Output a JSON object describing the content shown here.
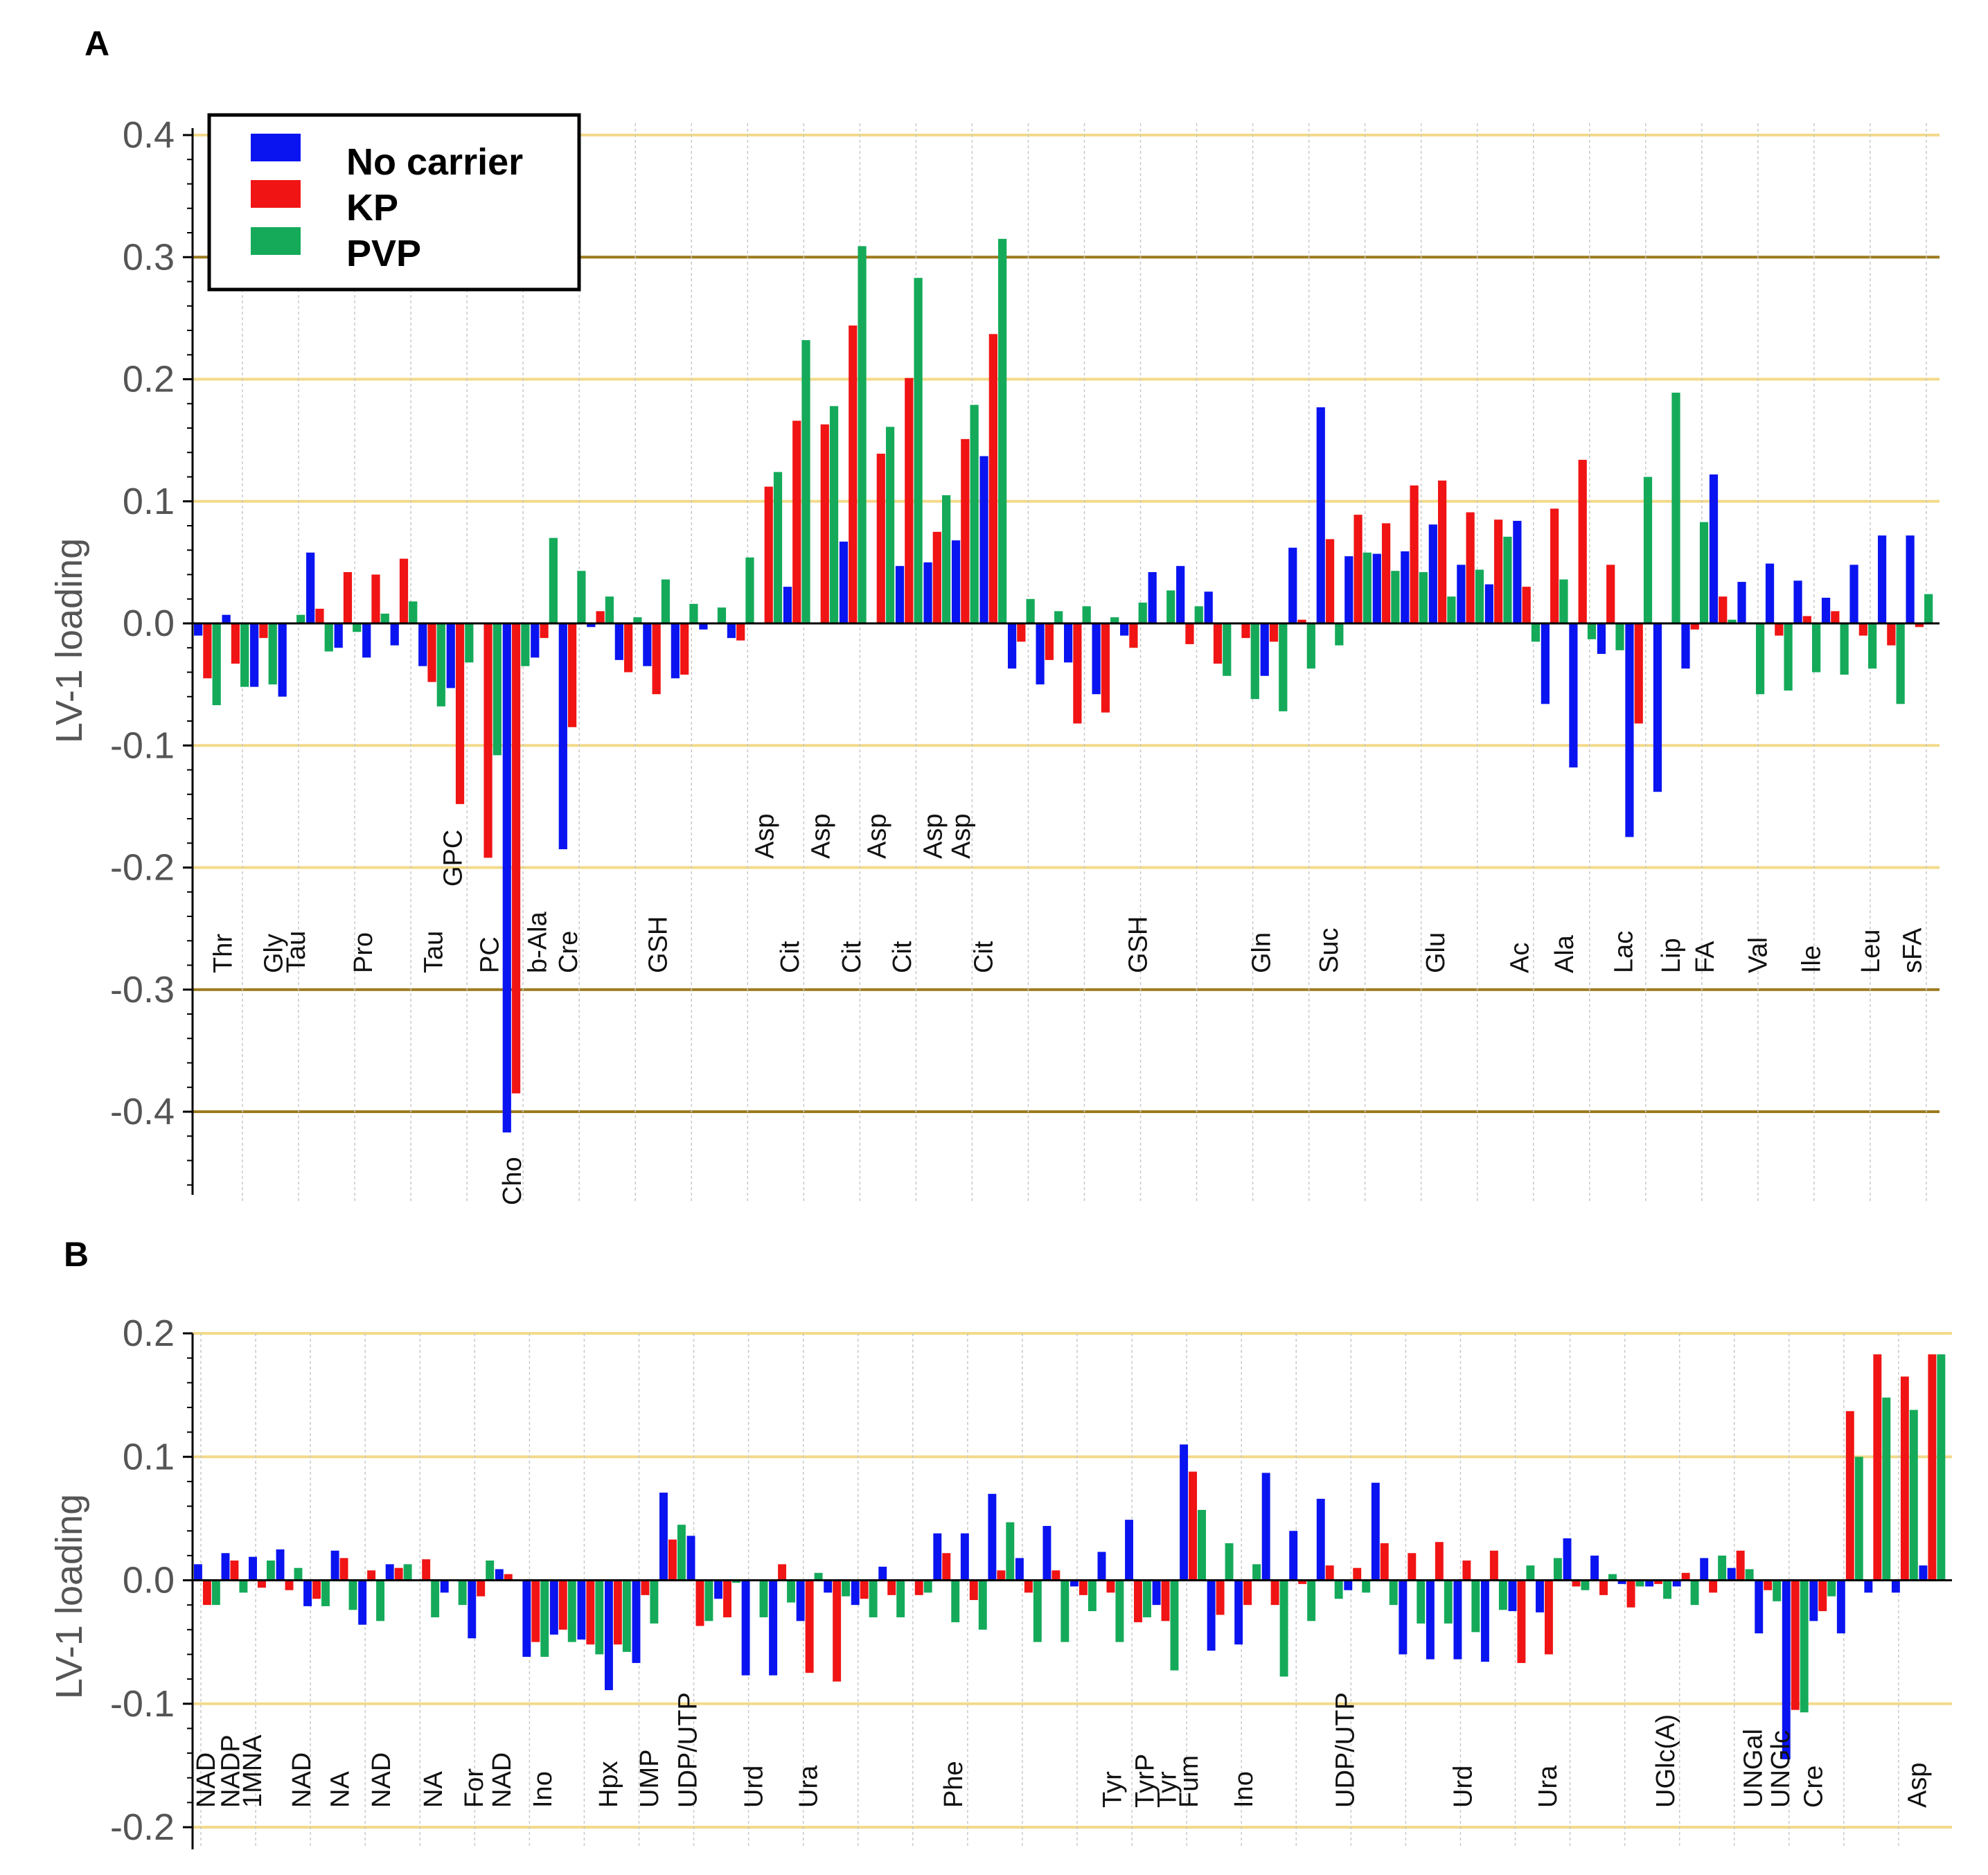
{
  "colors": {
    "No carrier": "#0a14f0",
    "KP": "#f01414",
    "PVP": "#14aa5a",
    "grid_light": "#f3da8a",
    "grid_dark": "#9c7a1e"
  },
  "legend": [
    {
      "name": "No carrier",
      "color": "#0a14f0"
    },
    {
      "name": "KP",
      "color": "#f01414"
    },
    {
      "name": "PVP",
      "color": "#14aa5a"
    }
  ],
  "chart_data": [
    {
      "panel": "A",
      "type": "bar",
      "ylabel": "LV-1 loading",
      "ylim": [
        -0.47,
        0.4
      ],
      "yticks": [
        "0.4",
        "0.3",
        "0.2",
        "0.1",
        "0.0",
        "-0.1",
        "-0.2",
        "-0.3",
        "-0.4"
      ],
      "series_names": [
        "No carrier",
        "KP",
        "PVP"
      ],
      "groups": [
        [
          -0.01,
          -0.045,
          -0.067
        ],
        [
          0.007,
          -0.033,
          -0.052
        ],
        [
          -0.052,
          -0.012,
          -0.05
        ],
        [
          -0.06,
          0.0,
          0.007
        ],
        [
          0.058,
          0.012,
          -0.023
        ],
        [
          -0.02,
          0.042,
          -0.007
        ],
        [
          -0.028,
          0.04,
          0.008
        ],
        [
          -0.018,
          0.053,
          0.018
        ],
        [
          -0.035,
          -0.048,
          -0.068
        ],
        [
          -0.053,
          -0.148,
          -0.032
        ],
        [
          0.0,
          -0.192,
          -0.108
        ],
        [
          -0.417,
          -0.385,
          -0.035
        ],
        [
          -0.028,
          -0.012,
          0.07
        ],
        [
          -0.185,
          -0.085,
          0.043
        ],
        [
          -0.003,
          0.01,
          0.022
        ],
        [
          -0.03,
          -0.04,
          0.005
        ],
        [
          -0.035,
          -0.058,
          0.036
        ],
        [
          -0.045,
          -0.042,
          0.016
        ],
        [
          -0.005,
          0.0,
          0.013
        ],
        [
          -0.012,
          -0.014,
          0.054
        ],
        [
          0.0,
          0.112,
          0.124
        ],
        [
          0.03,
          0.166,
          0.232
        ],
        [
          0.0,
          0.163,
          0.178
        ],
        [
          0.067,
          0.244,
          0.309
        ],
        [
          0.0,
          0.139,
          0.161
        ],
        [
          0.047,
          0.201,
          0.283
        ],
        [
          0.05,
          0.075,
          0.105
        ],
        [
          0.068,
          0.151,
          0.179
        ],
        [
          0.137,
          0.237,
          0.315
        ],
        [
          -0.037,
          -0.015,
          0.02
        ],
        [
          -0.05,
          -0.03,
          0.01
        ],
        [
          -0.032,
          -0.082,
          0.014
        ],
        [
          -0.058,
          -0.073,
          0.005
        ],
        [
          -0.01,
          -0.02,
          0.017
        ],
        [
          0.042,
          0.0,
          0.027
        ],
        [
          0.047,
          -0.017,
          0.014
        ],
        [
          0.026,
          -0.033,
          -0.043
        ],
        [
          0.0,
          -0.012,
          -0.062
        ],
        [
          -0.043,
          -0.015,
          -0.072
        ],
        [
          0.062,
          0.003,
          -0.037
        ],
        [
          0.177,
          0.069,
          -0.018
        ],
        [
          0.055,
          0.089,
          0.058
        ],
        [
          0.057,
          0.082,
          0.043
        ],
        [
          0.059,
          0.113,
          0.042
        ],
        [
          0.081,
          0.117,
          0.022
        ],
        [
          0.048,
          0.091,
          0.044
        ],
        [
          0.032,
          0.085,
          0.071
        ],
        [
          0.084,
          0.03,
          -0.015
        ],
        [
          -0.066,
          0.094,
          0.036
        ],
        [
          -0.118,
          0.134,
          -0.013
        ],
        [
          -0.025,
          0.048,
          -0.022
        ],
        [
          -0.175,
          -0.082,
          0.12
        ],
        [
          -0.138,
          0.0,
          0.189
        ],
        [
          -0.037,
          -0.005,
          0.083
        ],
        [
          0.122,
          0.022,
          0.003
        ],
        [
          0.034,
          0.0,
          -0.058
        ],
        [
          0.049,
          -0.01,
          -0.055
        ],
        [
          0.035,
          0.006,
          -0.04
        ],
        [
          0.021,
          0.01,
          -0.042
        ],
        [
          0.048,
          -0.01,
          -0.037
        ],
        [
          0.072,
          -0.018,
          -0.066
        ],
        [
          0.072,
          -0.003,
          0.024
        ]
      ],
      "category_labels": [
        {
          "text": "Thr",
          "at": 1.0
        },
        {
          "text": "Gly",
          "at": 2.8
        },
        {
          "text": "Tau",
          "at": 3.6
        },
        {
          "text": "Pro",
          "at": 6.0
        },
        {
          "text": "Tau",
          "at": 8.5
        },
        {
          "text": "PC",
          "at": 10.5
        },
        {
          "text": "b-Ala",
          "at": 12.2
        },
        {
          "text": "Cre",
          "at": 13.3
        },
        {
          "text": "GSH",
          "at": 16.5
        },
        {
          "text": "Cit",
          "at": 21.2
        },
        {
          "text": "Cit",
          "at": 23.4
        },
        {
          "text": "Cit",
          "at": 25.2
        },
        {
          "text": "Cit",
          "at": 28.1
        },
        {
          "text": "GSH",
          "at": 33.6
        },
        {
          "text": "Gln",
          "at": 38.0
        },
        {
          "text": "Suc",
          "at": 40.4
        },
        {
          "text": "Glu",
          "at": 44.2
        },
        {
          "text": "Ac",
          "at": 47.2
        },
        {
          "text": "Ala",
          "at": 48.8
        },
        {
          "text": "Lac",
          "at": 50.9
        },
        {
          "text": "Lip",
          "at": 52.6
        },
        {
          "text": "FA",
          "at": 53.8
        },
        {
          "text": "Val",
          "at": 55.7
        },
        {
          "text": "Ile",
          "at": 57.6
        },
        {
          "text": "Leu",
          "at": 59.7
        },
        {
          "text": "sFA",
          "at": 61.2
        }
      ],
      "annotations": [
        {
          "text": "GPC",
          "at": 9.2
        },
        {
          "text": "Asp",
          "at": 20.3
        },
        {
          "text": "Asp",
          "at": 22.3
        },
        {
          "text": "Asp",
          "at": 24.3
        },
        {
          "text": "Asp",
          "at": 26.3
        },
        {
          "text": "Asp",
          "at": 27.3
        },
        {
          "text": "Cho",
          "at": 11.3
        }
      ]
    },
    {
      "panel": "B",
      "type": "bar",
      "ylabel": "LV-1 loading",
      "ylim": [
        -0.2,
        0.2
      ],
      "yticks": [
        "0.2",
        "0.1",
        "0.0",
        "-0.1",
        "-0.2"
      ],
      "series_names": [
        "No carrier",
        "KP",
        "PVP"
      ],
      "groups": [
        [
          0.013,
          -0.02,
          -0.02
        ],
        [
          0.022,
          0.016,
          -0.01
        ],
        [
          0.019,
          -0.006,
          0.016
        ],
        [
          0.025,
          -0.008,
          0.01
        ],
        [
          -0.021,
          -0.015,
          -0.021
        ],
        [
          0.024,
          0.018,
          -0.024
        ],
        [
          -0.036,
          0.008,
          -0.033
        ],
        [
          0.013,
          0.01,
          0.013
        ],
        [
          0.0,
          0.017,
          -0.03
        ],
        [
          -0.01,
          0.0,
          -0.02
        ],
        [
          -0.047,
          -0.013,
          0.016
        ],
        [
          0.009,
          0.005,
          0.0
        ],
        [
          -0.062,
          -0.05,
          -0.062
        ],
        [
          -0.044,
          -0.04,
          -0.05
        ],
        [
          -0.048,
          -0.052,
          -0.06
        ],
        [
          -0.089,
          -0.052,
          -0.058
        ],
        [
          -0.067,
          -0.012,
          -0.035
        ],
        [
          0.071,
          0.033,
          0.045
        ],
        [
          0.036,
          -0.037,
          -0.033
        ],
        [
          -0.015,
          -0.03,
          -0.002
        ],
        [
          -0.077,
          0.0,
          -0.03
        ],
        [
          -0.077,
          0.013,
          -0.018
        ],
        [
          -0.033,
          -0.075,
          0.006
        ],
        [
          -0.01,
          -0.082,
          -0.013
        ],
        [
          -0.02,
          -0.015,
          -0.03
        ],
        [
          0.011,
          -0.012,
          -0.03
        ],
        [
          0.0,
          -0.012,
          -0.01
        ],
        [
          0.038,
          0.022,
          -0.034
        ],
        [
          0.038,
          -0.016,
          -0.04
        ],
        [
          0.07,
          0.008,
          0.047
        ],
        [
          0.018,
          -0.01,
          -0.05
        ],
        [
          0.044,
          0.008,
          -0.05
        ],
        [
          -0.005,
          -0.012,
          -0.025
        ],
        [
          0.023,
          -0.01,
          -0.05
        ],
        [
          0.049,
          -0.034,
          -0.03
        ],
        [
          -0.02,
          -0.033,
          -0.073
        ],
        [
          0.11,
          0.088,
          0.057
        ],
        [
          -0.057,
          -0.028,
          0.03
        ],
        [
          -0.052,
          -0.02,
          0.013
        ],
        [
          0.087,
          -0.02,
          -0.078
        ],
        [
          0.04,
          -0.003,
          -0.033
        ],
        [
          0.066,
          0.012,
          -0.015
        ],
        [
          -0.008,
          0.01,
          -0.01
        ],
        [
          0.079,
          0.03,
          -0.02
        ],
        [
          -0.06,
          0.022,
          -0.035
        ],
        [
          -0.064,
          0.031,
          -0.035
        ],
        [
          -0.064,
          0.016,
          -0.042
        ],
        [
          -0.066,
          0.024,
          -0.024
        ],
        [
          -0.025,
          -0.067,
          0.012
        ],
        [
          -0.026,
          -0.06,
          0.018
        ],
        [
          0.034,
          -0.005,
          -0.008
        ],
        [
          0.02,
          -0.012,
          0.005
        ],
        [
          -0.003,
          -0.022,
          -0.005
        ],
        [
          -0.005,
          -0.003,
          -0.015
        ],
        [
          -0.005,
          0.006,
          -0.02
        ],
        [
          0.018,
          -0.01,
          0.02
        ],
        [
          0.01,
          0.024,
          0.009
        ],
        [
          -0.043,
          -0.008,
          -0.017
        ],
        [
          -0.145,
          -0.105,
          -0.107
        ],
        [
          -0.033,
          -0.025,
          -0.013
        ],
        [
          -0.043,
          0.137,
          0.1
        ],
        [
          -0.01,
          0.183,
          0.148
        ],
        [
          -0.01,
          0.165,
          0.138
        ],
        [
          0.012,
          0.183,
          0.183
        ]
      ],
      "category_labels": [
        {
          "text": "NAD",
          "at": 0.4
        },
        {
          "text": "NADP",
          "at": 1.3
        },
        {
          "text": "1MNA",
          "at": 2.1
        },
        {
          "text": "NAD",
          "at": 3.9
        },
        {
          "text": "NA",
          "at": 5.3
        },
        {
          "text": "NAD",
          "at": 6.8
        },
        {
          "text": "NA",
          "at": 8.7
        },
        {
          "text": "For",
          "at": 10.2
        },
        {
          "text": "NAD",
          "at": 11.2
        },
        {
          "text": "Ino",
          "at": 12.7
        },
        {
          "text": "Hpx",
          "at": 15.1
        },
        {
          "text": "UMP",
          "at": 16.6
        },
        {
          "text": "UDP/UTP",
          "at": 18.0
        },
        {
          "text": "Urd",
          "at": 20.4
        },
        {
          "text": "Ura",
          "at": 22.4
        },
        {
          "text": "Phe",
          "at": 27.7
        },
        {
          "text": "Tyr",
          "at": 33.5
        },
        {
          "text": "TyrP",
          "at": 34.7
        },
        {
          "text": "Tyr",
          "at": 35.5
        },
        {
          "text": "Fum",
          "at": 36.3
        },
        {
          "text": "Ino",
          "at": 38.3
        },
        {
          "text": "UDP/UTP",
          "at": 42.0
        },
        {
          "text": "Urd",
          "at": 46.3
        },
        {
          "text": "Ura",
          "at": 49.4
        },
        {
          "text": "UGlc(A)",
          "at": 53.7
        },
        {
          "text": "UNGal",
          "at": 56.9
        },
        {
          "text": "UNGlc",
          "at": 57.9
        },
        {
          "text": "Cre",
          "at": 59.1
        },
        {
          "text": "Asp",
          "at": 62.9
        }
      ],
      "annotations": []
    }
  ]
}
